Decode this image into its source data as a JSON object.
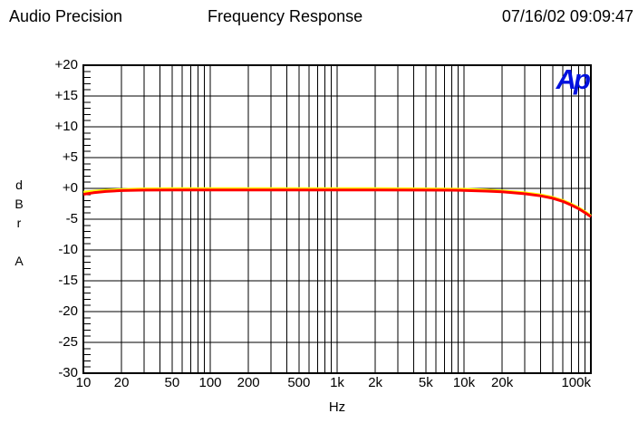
{
  "header": {
    "app_name": "Audio Precision",
    "title": "Frequency Response",
    "datetime": "07/16/02 09:09:47"
  },
  "logo": {
    "text": "Ap",
    "color": "#0011dd"
  },
  "colors": {
    "grid": "#000000",
    "trace_red": "#ff0000",
    "trace_yellow": "#ffff00",
    "background": "#ffffff"
  },
  "chart_data": {
    "type": "line",
    "title": "Frequency Response",
    "xlabel": "Hz",
    "ylabel": "dBr A",
    "ylabel_stack": [
      "d",
      "B",
      "r",
      "",
      "A"
    ],
    "x_scale": "log",
    "x_range": [
      10,
      100000
    ],
    "ylim": [
      -30,
      20
    ],
    "y_major_step": 5,
    "y_minor_step": 1,
    "grid": true,
    "legend": "none",
    "y_ticks": [
      {
        "v": 20,
        "label": "+20"
      },
      {
        "v": 15,
        "label": "+15"
      },
      {
        "v": 10,
        "label": "+10"
      },
      {
        "v": 5,
        "label": "+5"
      },
      {
        "v": 0,
        "label": "+0"
      },
      {
        "v": -5,
        "label": "-5"
      },
      {
        "v": -10,
        "label": "-10"
      },
      {
        "v": -15,
        "label": "-15"
      },
      {
        "v": -20,
        "label": "-20"
      },
      {
        "v": -25,
        "label": "-25"
      },
      {
        "v": -30,
        "label": "-30"
      }
    ],
    "x_ticks": [
      {
        "f": 10,
        "label": "10"
      },
      {
        "f": 20,
        "label": "20"
      },
      {
        "f": 50,
        "label": "50"
      },
      {
        "f": 100,
        "label": "100"
      },
      {
        "f": 200,
        "label": "200"
      },
      {
        "f": 500,
        "label": "500"
      },
      {
        "f": 1000,
        "label": "1k"
      },
      {
        "f": 2000,
        "label": "2k"
      },
      {
        "f": 5000,
        "label": "5k"
      },
      {
        "f": 10000,
        "label": "10k"
      },
      {
        "f": 20000,
        "label": "20k"
      },
      {
        "f": 100000,
        "label": "100k",
        "align": "end"
      }
    ],
    "series": [
      {
        "name": "trace-yellow",
        "color": "#ffff00",
        "points": [
          [
            10,
            -0.6
          ],
          [
            12,
            -0.45
          ],
          [
            15,
            -0.3
          ],
          [
            20,
            -0.17
          ],
          [
            30,
            -0.08
          ],
          [
            50,
            -0.05
          ],
          [
            100,
            -0.05
          ],
          [
            200,
            -0.05
          ],
          [
            500,
            -0.05
          ],
          [
            1000,
            -0.05
          ],
          [
            2000,
            -0.05
          ],
          [
            5000,
            -0.07
          ],
          [
            8000,
            -0.1
          ],
          [
            10000,
            -0.13
          ],
          [
            15000,
            -0.25
          ],
          [
            20000,
            -0.4
          ],
          [
            30000,
            -0.72
          ],
          [
            40000,
            -1.05
          ],
          [
            50000,
            -1.45
          ],
          [
            60000,
            -1.95
          ],
          [
            70000,
            -2.55
          ],
          [
            80000,
            -3.15
          ],
          [
            90000,
            -3.8
          ],
          [
            100000,
            -4.45
          ]
        ]
      },
      {
        "name": "trace-red",
        "color": "#ff0000",
        "points": [
          [
            10,
            -0.95
          ],
          [
            12,
            -0.7
          ],
          [
            15,
            -0.5
          ],
          [
            20,
            -0.35
          ],
          [
            30,
            -0.28
          ],
          [
            50,
            -0.26
          ],
          [
            100,
            -0.26
          ],
          [
            200,
            -0.26
          ],
          [
            500,
            -0.26
          ],
          [
            1000,
            -0.26
          ],
          [
            2000,
            -0.26
          ],
          [
            5000,
            -0.28
          ],
          [
            8000,
            -0.3
          ],
          [
            10000,
            -0.33
          ],
          [
            15000,
            -0.44
          ],
          [
            20000,
            -0.55
          ],
          [
            30000,
            -0.87
          ],
          [
            40000,
            -1.2
          ],
          [
            50000,
            -1.6
          ],
          [
            60000,
            -2.1
          ],
          [
            70000,
            -2.7
          ],
          [
            80000,
            -3.3
          ],
          [
            90000,
            -3.95
          ],
          [
            100000,
            -4.6
          ]
        ]
      }
    ]
  }
}
